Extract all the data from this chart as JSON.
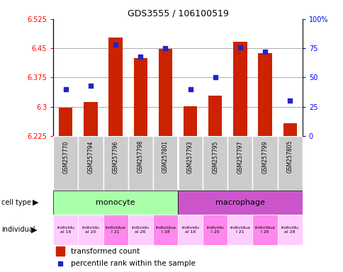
{
  "title": "GDS3555 / 106100519",
  "samples": [
    "GSM257770",
    "GSM257794",
    "GSM257796",
    "GSM257798",
    "GSM257801",
    "GSM257793",
    "GSM257795",
    "GSM257797",
    "GSM257799",
    "GSM257805"
  ],
  "transformed_counts": [
    6.298,
    6.312,
    6.478,
    6.425,
    6.448,
    6.301,
    6.328,
    6.466,
    6.438,
    6.258
  ],
  "percentile_ranks": [
    40,
    43,
    78,
    68,
    75,
    40,
    50,
    76,
    72,
    30
  ],
  "ymin": 6.225,
  "ymax": 6.525,
  "yticks": [
    6.225,
    6.3,
    6.375,
    6.45,
    6.525
  ],
  "ytick_labels": [
    "6.225",
    "6.3",
    "6.375",
    "6.45",
    "6.525"
  ],
  "right_yticks": [
    0,
    25,
    50,
    75,
    100
  ],
  "right_ytick_labels": [
    "0",
    "25",
    "50",
    "75",
    "100%"
  ],
  "bar_color": "#cc2200",
  "dot_color": "#2222cc",
  "monocyte_color": "#aaffaa",
  "macrophage_color": "#cc55cc",
  "individual_colors": [
    "#ffccff",
    "#ffccff",
    "#ff88ff",
    "#ffccff",
    "#ff88ff",
    "#ffccff",
    "#ff88ff",
    "#ffccff",
    "#ff88ff",
    "#ffccff"
  ],
  "individual_labels": [
    "individu\nal 16",
    "individu\nal 20",
    "individua\nl 21",
    "individu\nal 26",
    "individua\nl 28",
    "individu\nal 16",
    "individu\nl 20",
    "individua\nl 21",
    "individua\nl 26",
    "individu\nal 28"
  ],
  "gsm_bg": "#cccccc",
  "legend_bar_label": "transformed count",
  "legend_dot_label": "percentile rank within the sample"
}
